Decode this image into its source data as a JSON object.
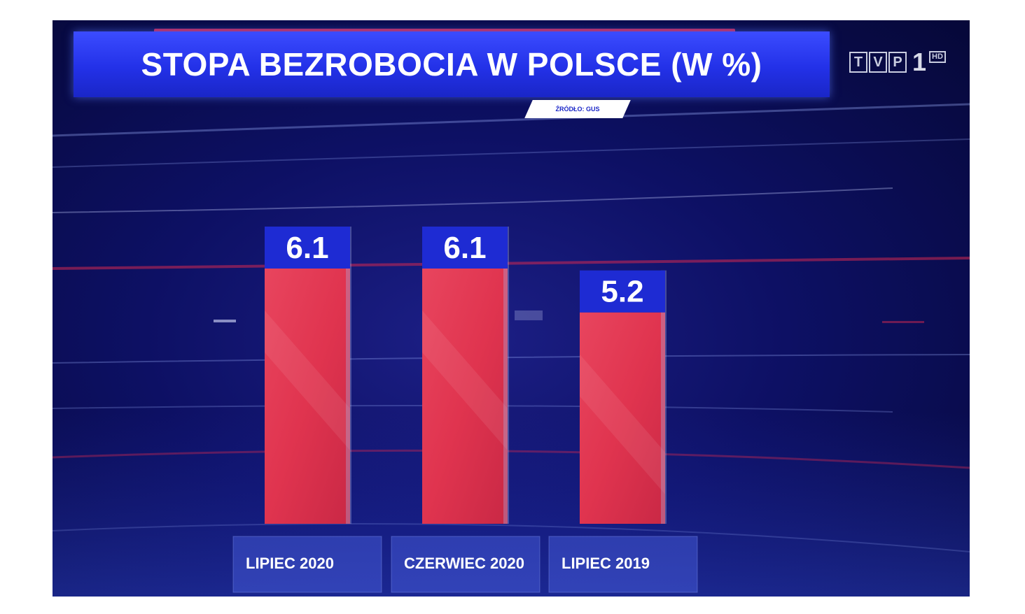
{
  "header": {
    "title": "STOPA BEZROBOCIA W POLSCE (W %)",
    "source": "ŹRÓDŁO: GUS"
  },
  "logo": {
    "letters": [
      "T",
      "V",
      "P"
    ],
    "number": "1",
    "badge": "HD"
  },
  "colors": {
    "bar_fill": "#e0344f",
    "value_box": "#1e2bd3",
    "title_bar": "#2331e8",
    "background": "#0d1064"
  },
  "chart_data": {
    "type": "bar",
    "title": "STOPA BEZROBOCIA W POLSCE (W %)",
    "categories": [
      "LIPIEC 2020",
      "CZERWIEC 2020",
      "LIPIEC 2019"
    ],
    "values": [
      6.1,
      6.1,
      5.2
    ],
    "value_labels": [
      "6.1",
      "6.1",
      "5.2"
    ],
    "ylim": [
      0,
      6.1
    ],
    "grid": false,
    "legend": "none"
  }
}
